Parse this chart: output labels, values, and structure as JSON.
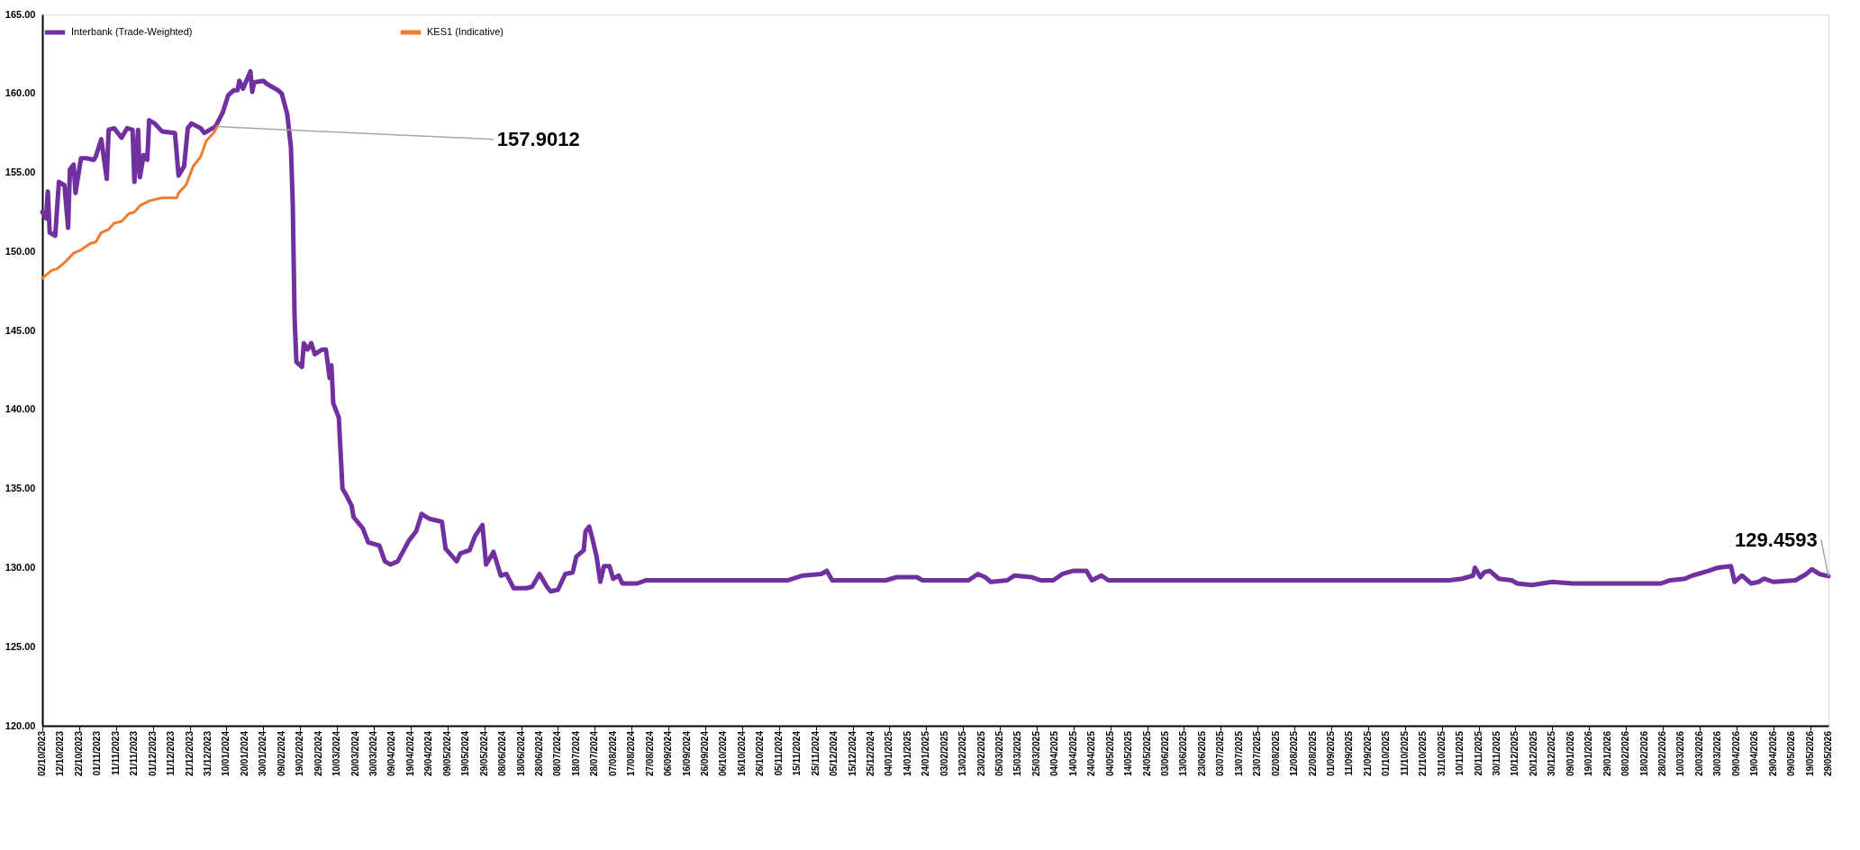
{
  "chart_data": {
    "type": "line",
    "legend": "top",
    "grid": false,
    "line_style": "solid",
    "marker": "none",
    "ylim": [
      120,
      165
    ],
    "yticks": [
      {
        "value": 120,
        "label": "120.00"
      },
      {
        "value": 125,
        "label": "125.00"
      },
      {
        "value": 130,
        "label": "130.00"
      },
      {
        "value": 135,
        "label": "135.00"
      },
      {
        "value": 140,
        "label": "140.00"
      },
      {
        "value": 145,
        "label": "145.00"
      },
      {
        "value": 150,
        "label": "150.00"
      },
      {
        "value": 155,
        "label": "155.00"
      },
      {
        "value": 160,
        "label": "160.00"
      },
      {
        "value": 165,
        "label": "165.00"
      }
    ],
    "xlim": [
      "2023-10-02",
      "2026-05-29"
    ],
    "xticks": [
      {
        "value": "2023-10-02",
        "label": "02/10/2023"
      },
      {
        "value": "2023-10-12",
        "label": "12/10/2023"
      },
      {
        "value": "2023-10-22",
        "label": "22/10/2023"
      },
      {
        "value": "2023-11-01",
        "label": "01/11/2023"
      },
      {
        "value": "2023-11-11",
        "label": "11/11/2023"
      },
      {
        "value": "2023-11-21",
        "label": "21/11/2023"
      },
      {
        "value": "2023-12-01",
        "label": "01/12/2023"
      },
      {
        "value": "2023-12-11",
        "label": "11/12/2023"
      },
      {
        "value": "2023-12-21",
        "label": "21/12/2023"
      },
      {
        "value": "2023-12-31",
        "label": "31/12/2023"
      },
      {
        "value": "2024-01-10",
        "label": "10/01/2024"
      },
      {
        "value": "2024-01-20",
        "label": "20/01/2024"
      },
      {
        "value": "2024-01-30",
        "label": "30/01/2024"
      },
      {
        "value": "2024-02-09",
        "label": "09/02/2024"
      },
      {
        "value": "2024-02-19",
        "label": "19/02/2024"
      },
      {
        "value": "2024-02-29",
        "label": "29/02/2024"
      },
      {
        "value": "2024-03-10",
        "label": "10/03/2024"
      },
      {
        "value": "2024-03-20",
        "label": "20/03/2024"
      },
      {
        "value": "2024-03-30",
        "label": "30/03/2024"
      },
      {
        "value": "2024-04-09",
        "label": "09/04/2024"
      },
      {
        "value": "2024-04-19",
        "label": "19/04/2024"
      },
      {
        "value": "2024-04-29",
        "label": "29/04/2024"
      },
      {
        "value": "2024-05-09",
        "label": "09/05/2024"
      },
      {
        "value": "2024-05-19",
        "label": "19/05/2024"
      },
      {
        "value": "2024-05-29",
        "label": "29/05/2024"
      },
      {
        "value": "2024-06-08",
        "label": "08/06/2024"
      },
      {
        "value": "2024-06-18",
        "label": "18/06/2024"
      },
      {
        "value": "2024-06-28",
        "label": "28/06/2024"
      },
      {
        "value": "2024-07-08",
        "label": "08/07/2024"
      },
      {
        "value": "2024-07-18",
        "label": "18/07/2024"
      },
      {
        "value": "2024-07-28",
        "label": "28/07/2024"
      },
      {
        "value": "2024-08-07",
        "label": "07/08/2024"
      },
      {
        "value": "2024-08-17",
        "label": "17/08/2024"
      },
      {
        "value": "2024-08-27",
        "label": "27/08/2024"
      },
      {
        "value": "2024-09-06",
        "label": "06/09/2024"
      },
      {
        "value": "2024-09-16",
        "label": "16/09/2024"
      },
      {
        "value": "2024-09-26",
        "label": "26/09/2024"
      },
      {
        "value": "2024-10-06",
        "label": "06/10/2024"
      },
      {
        "value": "2024-10-16",
        "label": "16/10/2024"
      },
      {
        "value": "2024-10-26",
        "label": "26/10/2024"
      },
      {
        "value": "2024-11-05",
        "label": "05/11/2024"
      },
      {
        "value": "2024-11-15",
        "label": "15/11/2024"
      },
      {
        "value": "2024-11-25",
        "label": "25/11/2024"
      },
      {
        "value": "2024-12-05",
        "label": "05/12/2024"
      },
      {
        "value": "2024-12-15",
        "label": "15/12/2024"
      },
      {
        "value": "2024-12-25",
        "label": "25/12/2024"
      },
      {
        "value": "2025-01-04",
        "label": "04/01/2025"
      },
      {
        "value": "2025-01-14",
        "label": "14/01/2025"
      },
      {
        "value": "2025-01-24",
        "label": "24/01/2025"
      },
      {
        "value": "2025-02-03",
        "label": "03/02/2025"
      },
      {
        "value": "2025-02-13",
        "label": "13/02/2025"
      },
      {
        "value": "2025-02-23",
        "label": "23/02/2025"
      },
      {
        "value": "2025-03-05",
        "label": "05/03/2025"
      },
      {
        "value": "2025-03-15",
        "label": "15/03/2025"
      },
      {
        "value": "2025-03-25",
        "label": "25/03/2025"
      },
      {
        "value": "2025-04-04",
        "label": "04/04/2025"
      },
      {
        "value": "2025-04-14",
        "label": "14/04/2025"
      },
      {
        "value": "2025-04-24",
        "label": "24/04/2025"
      },
      {
        "value": "2025-05-04",
        "label": "04/05/2025"
      },
      {
        "value": "2025-05-14",
        "label": "14/05/2025"
      },
      {
        "value": "2025-05-24",
        "label": "24/05/2025"
      },
      {
        "value": "2025-06-03",
        "label": "03/06/2025"
      },
      {
        "value": "2025-06-13",
        "label": "13/06/2025"
      },
      {
        "value": "2025-06-23",
        "label": "23/06/2025"
      },
      {
        "value": "2025-07-03",
        "label": "03/07/2025"
      },
      {
        "value": "2025-07-13",
        "label": "13/07/2025"
      },
      {
        "value": "2025-07-23",
        "label": "23/07/2025"
      },
      {
        "value": "2025-08-02",
        "label": "02/08/2025"
      },
      {
        "value": "2025-08-12",
        "label": "12/08/2025"
      },
      {
        "value": "2025-08-22",
        "label": "22/08/2025"
      },
      {
        "value": "2025-09-01",
        "label": "01/09/2025"
      },
      {
        "value": "2025-09-11",
        "label": "11/09/2025"
      },
      {
        "value": "2025-09-21",
        "label": "21/09/2025"
      },
      {
        "value": "2025-10-01",
        "label": "01/10/2025"
      },
      {
        "value": "2025-10-11",
        "label": "11/10/2025"
      },
      {
        "value": "2025-10-21",
        "label": "21/10/2025"
      },
      {
        "value": "2025-10-31",
        "label": "31/10/2025"
      },
      {
        "value": "2025-11-10",
        "label": "10/11/2025"
      },
      {
        "value": "2025-11-20",
        "label": "20/11/2025"
      },
      {
        "value": "2025-11-30",
        "label": "30/11/2025"
      },
      {
        "value": "2025-12-10",
        "label": "10/12/2025"
      },
      {
        "value": "2025-12-20",
        "label": "20/12/2025"
      },
      {
        "value": "2025-12-30",
        "label": "30/12/2025"
      },
      {
        "value": "2026-01-09",
        "label": "09/01/2026"
      },
      {
        "value": "2026-01-19",
        "label": "19/01/2026"
      },
      {
        "value": "2026-01-29",
        "label": "29/01/2026"
      },
      {
        "value": "2026-02-08",
        "label": "08/02/2026"
      },
      {
        "value": "2026-02-18",
        "label": "18/02/2026"
      },
      {
        "value": "2026-02-28",
        "label": "28/02/2026"
      },
      {
        "value": "2026-03-10",
        "label": "10/03/2026"
      },
      {
        "value": "2026-03-20",
        "label": "20/03/2026"
      },
      {
        "value": "2026-03-30",
        "label": "30/03/2026"
      },
      {
        "value": "2026-04-09",
        "label": "09/04/2026"
      },
      {
        "value": "2026-04-19",
        "label": "19/04/2026"
      },
      {
        "value": "2026-04-29",
        "label": "29/04/2026"
      },
      {
        "value": "2026-05-09",
        "label": "09/05/2026"
      },
      {
        "value": "2026-05-19",
        "label": "19/05/2026"
      },
      {
        "value": "2026-05-29",
        "label": "29/05/2026"
      }
    ],
    "series": [
      {
        "name": "Interbank (Trade-Weighted)",
        "color": "#7030a0",
        "x": [
          "2023-10-02",
          "2023-10-04",
          "2023-10-05",
          "2023-10-06",
          "2023-10-09",
          "2023-10-11",
          "2023-10-14",
          "2023-10-16",
          "2023-10-17",
          "2023-10-19",
          "2023-10-20",
          "2023-10-23",
          "2023-10-26",
          "2023-10-30",
          "2023-10-31",
          "2023-11-03",
          "2023-11-06",
          "2023-11-07",
          "2023-11-10",
          "2023-11-14",
          "2023-11-17",
          "2023-11-20",
          "2023-11-21",
          "2023-11-23",
          "2023-11-24",
          "2023-11-26",
          "2023-11-28",
          "2023-11-29",
          "2023-12-02",
          "2023-12-06",
          "2023-12-13",
          "2023-12-15",
          "2023-12-18",
          "2023-12-20",
          "2023-12-22",
          "2023-12-27",
          "2023-12-29",
          "2024-01-04",
          "2024-01-08",
          "2024-01-11",
          "2024-01-14",
          "2024-01-16",
          "2024-01-17",
          "2024-01-19",
          "2024-01-23",
          "2024-01-24",
          "2024-01-25",
          "2024-01-30",
          "2024-02-01",
          "2024-02-07",
          "2024-02-09",
          "2024-02-12",
          "2024-02-14",
          "2024-02-15",
          "2024-02-16",
          "2024-02-17",
          "2024-02-20",
          "2024-02-21",
          "2024-02-23",
          "2024-02-25",
          "2024-02-27",
          "2024-03-02",
          "2024-03-04",
          "2024-03-06",
          "2024-03-07",
          "2024-03-08",
          "2024-03-11",
          "2024-03-13",
          "2024-03-15",
          "2024-03-18",
          "2024-03-19",
          "2024-03-24",
          "2024-03-27",
          "2024-04-02",
          "2024-04-05",
          "2024-04-08",
          "2024-04-12",
          "2024-04-18",
          "2024-04-22",
          "2024-04-25",
          "2024-04-29",
          "2024-05-06",
          "2024-05-08",
          "2024-05-14",
          "2024-05-16",
          "2024-05-21",
          "2024-05-24",
          "2024-05-28",
          "2024-05-30",
          "2024-06-03",
          "2024-06-07",
          "2024-06-10",
          "2024-06-14",
          "2024-06-21",
          "2024-06-24",
          "2024-06-28",
          "2024-07-02",
          "2024-07-04",
          "2024-07-08",
          "2024-07-12",
          "2024-07-16",
          "2024-07-18",
          "2024-07-22",
          "2024-07-23",
          "2024-07-25",
          "2024-07-27",
          "2024-07-29",
          "2024-07-31",
          "2024-08-02",
          "2024-08-05",
          "2024-08-07",
          "2024-08-10",
          "2024-08-12",
          "2024-08-20",
          "2024-08-25",
          "2024-11-10",
          "2024-11-18",
          "2024-11-28",
          "2024-12-01",
          "2024-12-04",
          "2025-01-02",
          "2025-01-08",
          "2025-01-19",
          "2025-01-22",
          "2025-02-16",
          "2025-02-21",
          "2025-02-25",
          "2025-02-28",
          "2025-03-09",
          "2025-03-13",
          "2025-03-22",
          "2025-03-27",
          "2025-04-03",
          "2025-04-08",
          "2025-04-14",
          "2025-04-21",
          "2025-04-24",
          "2025-04-29",
          "2025-05-03",
          "2025-11-04",
          "2025-11-11",
          "2025-11-17",
          "2025-11-18",
          "2025-11-21",
          "2025-11-23",
          "2025-11-26",
          "2025-12-01",
          "2025-12-08",
          "2025-12-11",
          "2025-12-19",
          "2025-12-30",
          "2026-01-10",
          "2026-02-27",
          "2026-03-04",
          "2026-03-12",
          "2026-03-16",
          "2026-03-25",
          "2026-03-30",
          "2026-04-06",
          "2026-04-08",
          "2026-04-12",
          "2026-04-17",
          "2026-04-21",
          "2026-04-24",
          "2026-04-29",
          "2026-05-11",
          "2026-05-17",
          "2026-05-20",
          "2026-05-24",
          "2026-05-29"
        ],
        "values": [
          152.5,
          152.1,
          153.8,
          151.2,
          151.0,
          154.4,
          154.2,
          151.5,
          155.2,
          155.5,
          153.7,
          155.9,
          155.9,
          155.8,
          156.0,
          157.1,
          154.6,
          157.7,
          157.8,
          157.2,
          157.8,
          157.7,
          154.4,
          157.7,
          154.7,
          156.1,
          155.8,
          158.3,
          158.1,
          157.6,
          157.5,
          154.8,
          155.4,
          157.8,
          158.1,
          157.8,
          157.5,
          157.9,
          158.8,
          159.9,
          160.2,
          160.2,
          160.8,
          160.3,
          161.4,
          160.1,
          160.7,
          160.8,
          160.6,
          160.2,
          160.0,
          158.7,
          156.6,
          153.0,
          145.8,
          143.0,
          142.7,
          144.2,
          143.8,
          144.2,
          143.5,
          143.8,
          143.8,
          142.0,
          142.8,
          140.4,
          139.5,
          135.0,
          134.6,
          133.9,
          133.2,
          132.5,
          131.6,
          131.4,
          130.4,
          130.2,
          130.4,
          131.7,
          132.3,
          133.4,
          133.1,
          132.9,
          131.2,
          130.4,
          130.9,
          131.1,
          132.0,
          132.7,
          130.2,
          131.0,
          129.5,
          129.6,
          128.7,
          128.7,
          128.8,
          129.6,
          128.8,
          128.5,
          128.6,
          129.6,
          129.7,
          130.7,
          131.1,
          132.3,
          132.6,
          131.7,
          130.7,
          129.1,
          130.1,
          130.1,
          129.3,
          129.5,
          129.0,
          129.0,
          129.2,
          129.2,
          129.5,
          129.6,
          129.8,
          129.2,
          129.2,
          129.4,
          129.4,
          129.2,
          129.2,
          129.6,
          129.4,
          129.1,
          129.2,
          129.5,
          129.4,
          129.2,
          129.2,
          129.6,
          129.8,
          129.8,
          129.2,
          129.5,
          129.2,
          129.2,
          129.3,
          129.5,
          130.0,
          129.4,
          129.7,
          129.8,
          129.3,
          129.2,
          129.0,
          128.9,
          129.1,
          129.0,
          129.0,
          129.2,
          129.3,
          129.5,
          129.8,
          130.0,
          130.1,
          129.1,
          129.5,
          129.0,
          129.1,
          129.3,
          129.1,
          129.2,
          129.6,
          129.9,
          129.6,
          129.4593
        ]
      },
      {
        "name": "KES1 (Indicative)",
        "color": "#ed7d31",
        "x": [
          "2023-10-02",
          "2023-10-07",
          "2023-10-10",
          "2023-10-15",
          "2023-10-19",
          "2023-10-23",
          "2023-10-28",
          "2023-10-31",
          "2023-11-03",
          "2023-11-07",
          "2023-11-10",
          "2023-11-14",
          "2023-11-18",
          "2023-11-21",
          "2023-11-24",
          "2023-11-29",
          "2023-12-06",
          "2023-12-14",
          "2023-12-15",
          "2023-12-19",
          "2023-12-23",
          "2023-12-27",
          "2023-12-30",
          "2024-01-03",
          "2024-01-05"
        ],
        "values": [
          148.3,
          148.8,
          148.9,
          149.4,
          149.9,
          150.1,
          150.5,
          150.6,
          151.2,
          151.4,
          151.8,
          151.9,
          152.4,
          152.5,
          152.9,
          153.2,
          153.4,
          153.4,
          153.7,
          154.2,
          155.4,
          156.0,
          157.0,
          157.5,
          157.9012
        ]
      }
    ],
    "annotations": [
      {
        "text": "157.9012",
        "x": "2024-01-05",
        "y": 157.9012
      },
      {
        "text": "129.4593",
        "x": "2026-05-29",
        "y": 129.4593
      }
    ]
  }
}
